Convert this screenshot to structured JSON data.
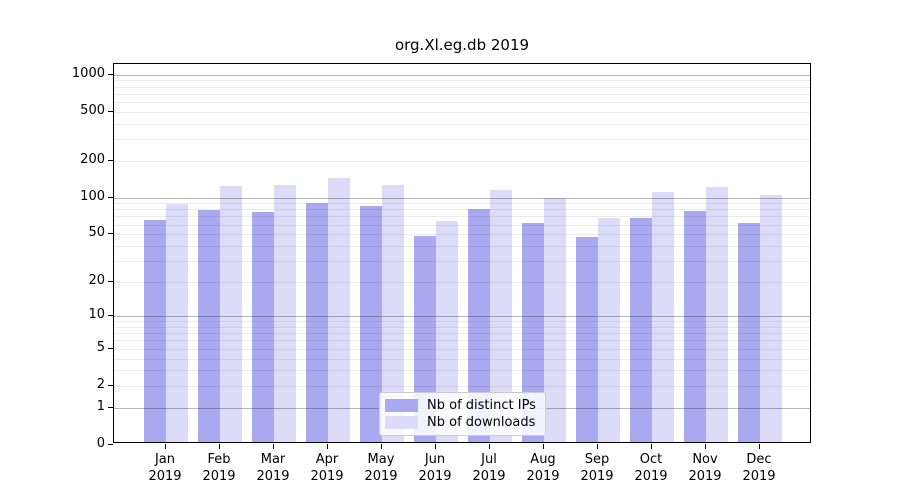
{
  "chart_data": {
    "type": "bar",
    "title": "org.Xl.eg.db 2019",
    "categories": [
      "Jan",
      "Feb",
      "Mar",
      "Apr",
      "May",
      "Jun",
      "Jul",
      "Aug",
      "Sep",
      "Oct",
      "Nov",
      "Dec"
    ],
    "category_sublabel": "2019",
    "series": [
      {
        "name": "Nb of distinct IPs",
        "color": "#a9a9f0",
        "values": [
          66,
          79,
          76,
          90,
          86,
          48,
          80,
          62,
          47,
          68,
          77,
          62
        ]
      },
      {
        "name": "Nb of downloads",
        "color": "#dcdcf8",
        "values": [
          89,
          124,
          126,
          145,
          127,
          64,
          115,
          100,
          68,
          112,
          123,
          105
        ]
      }
    ],
    "xlabel": "",
    "ylabel": "",
    "y_scale": "log10(value+1)",
    "y_ticks": [
      1000,
      500,
      200,
      100,
      50,
      20,
      10,
      5,
      2,
      1,
      0
    ],
    "y_major_gridlines": [
      1000,
      100,
      10,
      1
    ],
    "ylim": [
      0,
      1230
    ],
    "grid": "horizontal major+minor, drawn over bars",
    "legend_position": "lower center-left inside plot"
  },
  "colors": {
    "distinct_ips_bar": "#a9a9f0",
    "downloads_bar": "#dcdcf8",
    "major_grid": "rgba(0,0,0,0.28)",
    "minor_grid": "rgba(0,0,0,0.08)",
    "spine": "#000000",
    "legend_border": "#cccccc",
    "background": "#ffffff"
  }
}
